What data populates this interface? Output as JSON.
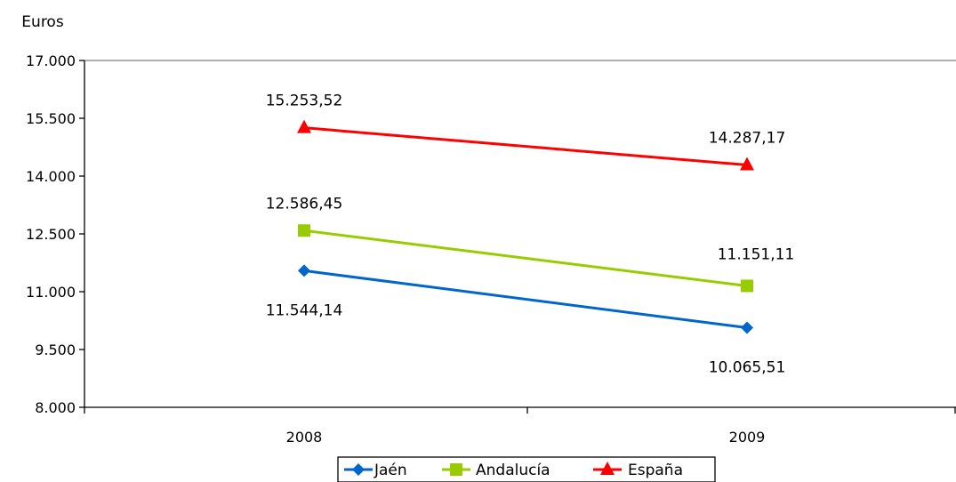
{
  "chart_data": {
    "type": "line",
    "ylabel": "Euros",
    "categories": [
      "2008",
      "2009"
    ],
    "ylim": [
      8000,
      17000
    ],
    "yticks": [
      "8.000",
      "9.500",
      "11.000",
      "12.500",
      "14.000",
      "15.500",
      "17.000"
    ],
    "ytick_values": [
      8000,
      9500,
      11000,
      12500,
      14000,
      15500,
      17000
    ],
    "grid": false,
    "legend_position": "bottom",
    "series": [
      {
        "name": "Jaén",
        "values": [
          11544.14,
          10065.51
        ],
        "labels": [
          "11.544,14",
          "10.065,51"
        ],
        "label_pos": "below",
        "color": "#0066CC",
        "marker": "diamond"
      },
      {
        "name": "Andalucía",
        "values": [
          12586.45,
          11151.11
        ],
        "labels": [
          "12.586,45",
          "11.151,11"
        ],
        "label_pos": "above",
        "color": "#99CC00",
        "marker": "square"
      },
      {
        "name": "España",
        "values": [
          15253.52,
          14287.17
        ],
        "labels": [
          "15.253,52",
          "14.287,17"
        ],
        "label_pos": "above",
        "color": "#FF0000",
        "marker": "triangle"
      }
    ]
  }
}
